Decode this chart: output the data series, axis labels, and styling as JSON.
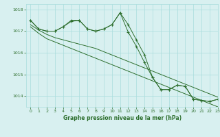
{
  "title": "Graphe pression niveau de la mer (hPa)",
  "bg_color": "#d8f0f0",
  "grid_color": "#aadddd",
  "line_color": "#2d6e2d",
  "marker": "+",
  "xlim": [
    -0.5,
    23
  ],
  "ylim": [
    1013.5,
    1018.25
  ],
  "yticks": [
    1014,
    1015,
    1016,
    1017,
    1018
  ],
  "xticks": [
    0,
    1,
    2,
    3,
    4,
    5,
    6,
    7,
    8,
    9,
    10,
    11,
    12,
    13,
    14,
    15,
    16,
    17,
    18,
    19,
    20,
    21,
    22,
    23
  ],
  "series": [
    [
      1017.5,
      1017.1,
      1017.0,
      1017.0,
      1017.2,
      1017.5,
      1017.5,
      1017.1,
      1017.0,
      1017.1,
      1017.3,
      1017.85,
      1017.3,
      1016.6,
      1015.9,
      1014.85,
      1014.3,
      1014.3,
      1014.5,
      1014.45,
      1013.85,
      1013.8,
      1013.75,
      1013.85
    ],
    [
      1017.5,
      1017.1,
      1017.0,
      1017.0,
      1017.2,
      1017.45,
      1017.5,
      1017.1,
      1017.0,
      1017.1,
      1017.3,
      1017.85,
      1016.95,
      1016.3,
      1015.55,
      1014.85,
      1014.3,
      1014.3,
      1014.5,
      1014.45,
      1013.85,
      1013.8,
      1013.75,
      1013.85
    ],
    [
      1017.3,
      1017.05,
      1016.85,
      1016.7,
      1016.6,
      1016.5,
      1016.4,
      1016.3,
      1016.2,
      1016.05,
      1015.9,
      1015.75,
      1015.6,
      1015.45,
      1015.3,
      1015.15,
      1015.0,
      1014.85,
      1014.7,
      1014.55,
      1014.4,
      1014.25,
      1014.1,
      1013.95
    ],
    [
      1017.2,
      1016.9,
      1016.65,
      1016.5,
      1016.35,
      1016.2,
      1016.05,
      1015.9,
      1015.75,
      1015.6,
      1015.45,
      1015.3,
      1015.15,
      1015.0,
      1014.85,
      1014.7,
      1014.55,
      1014.4,
      1014.25,
      1014.1,
      1013.95,
      1013.8,
      1013.65,
      1013.5
    ]
  ]
}
